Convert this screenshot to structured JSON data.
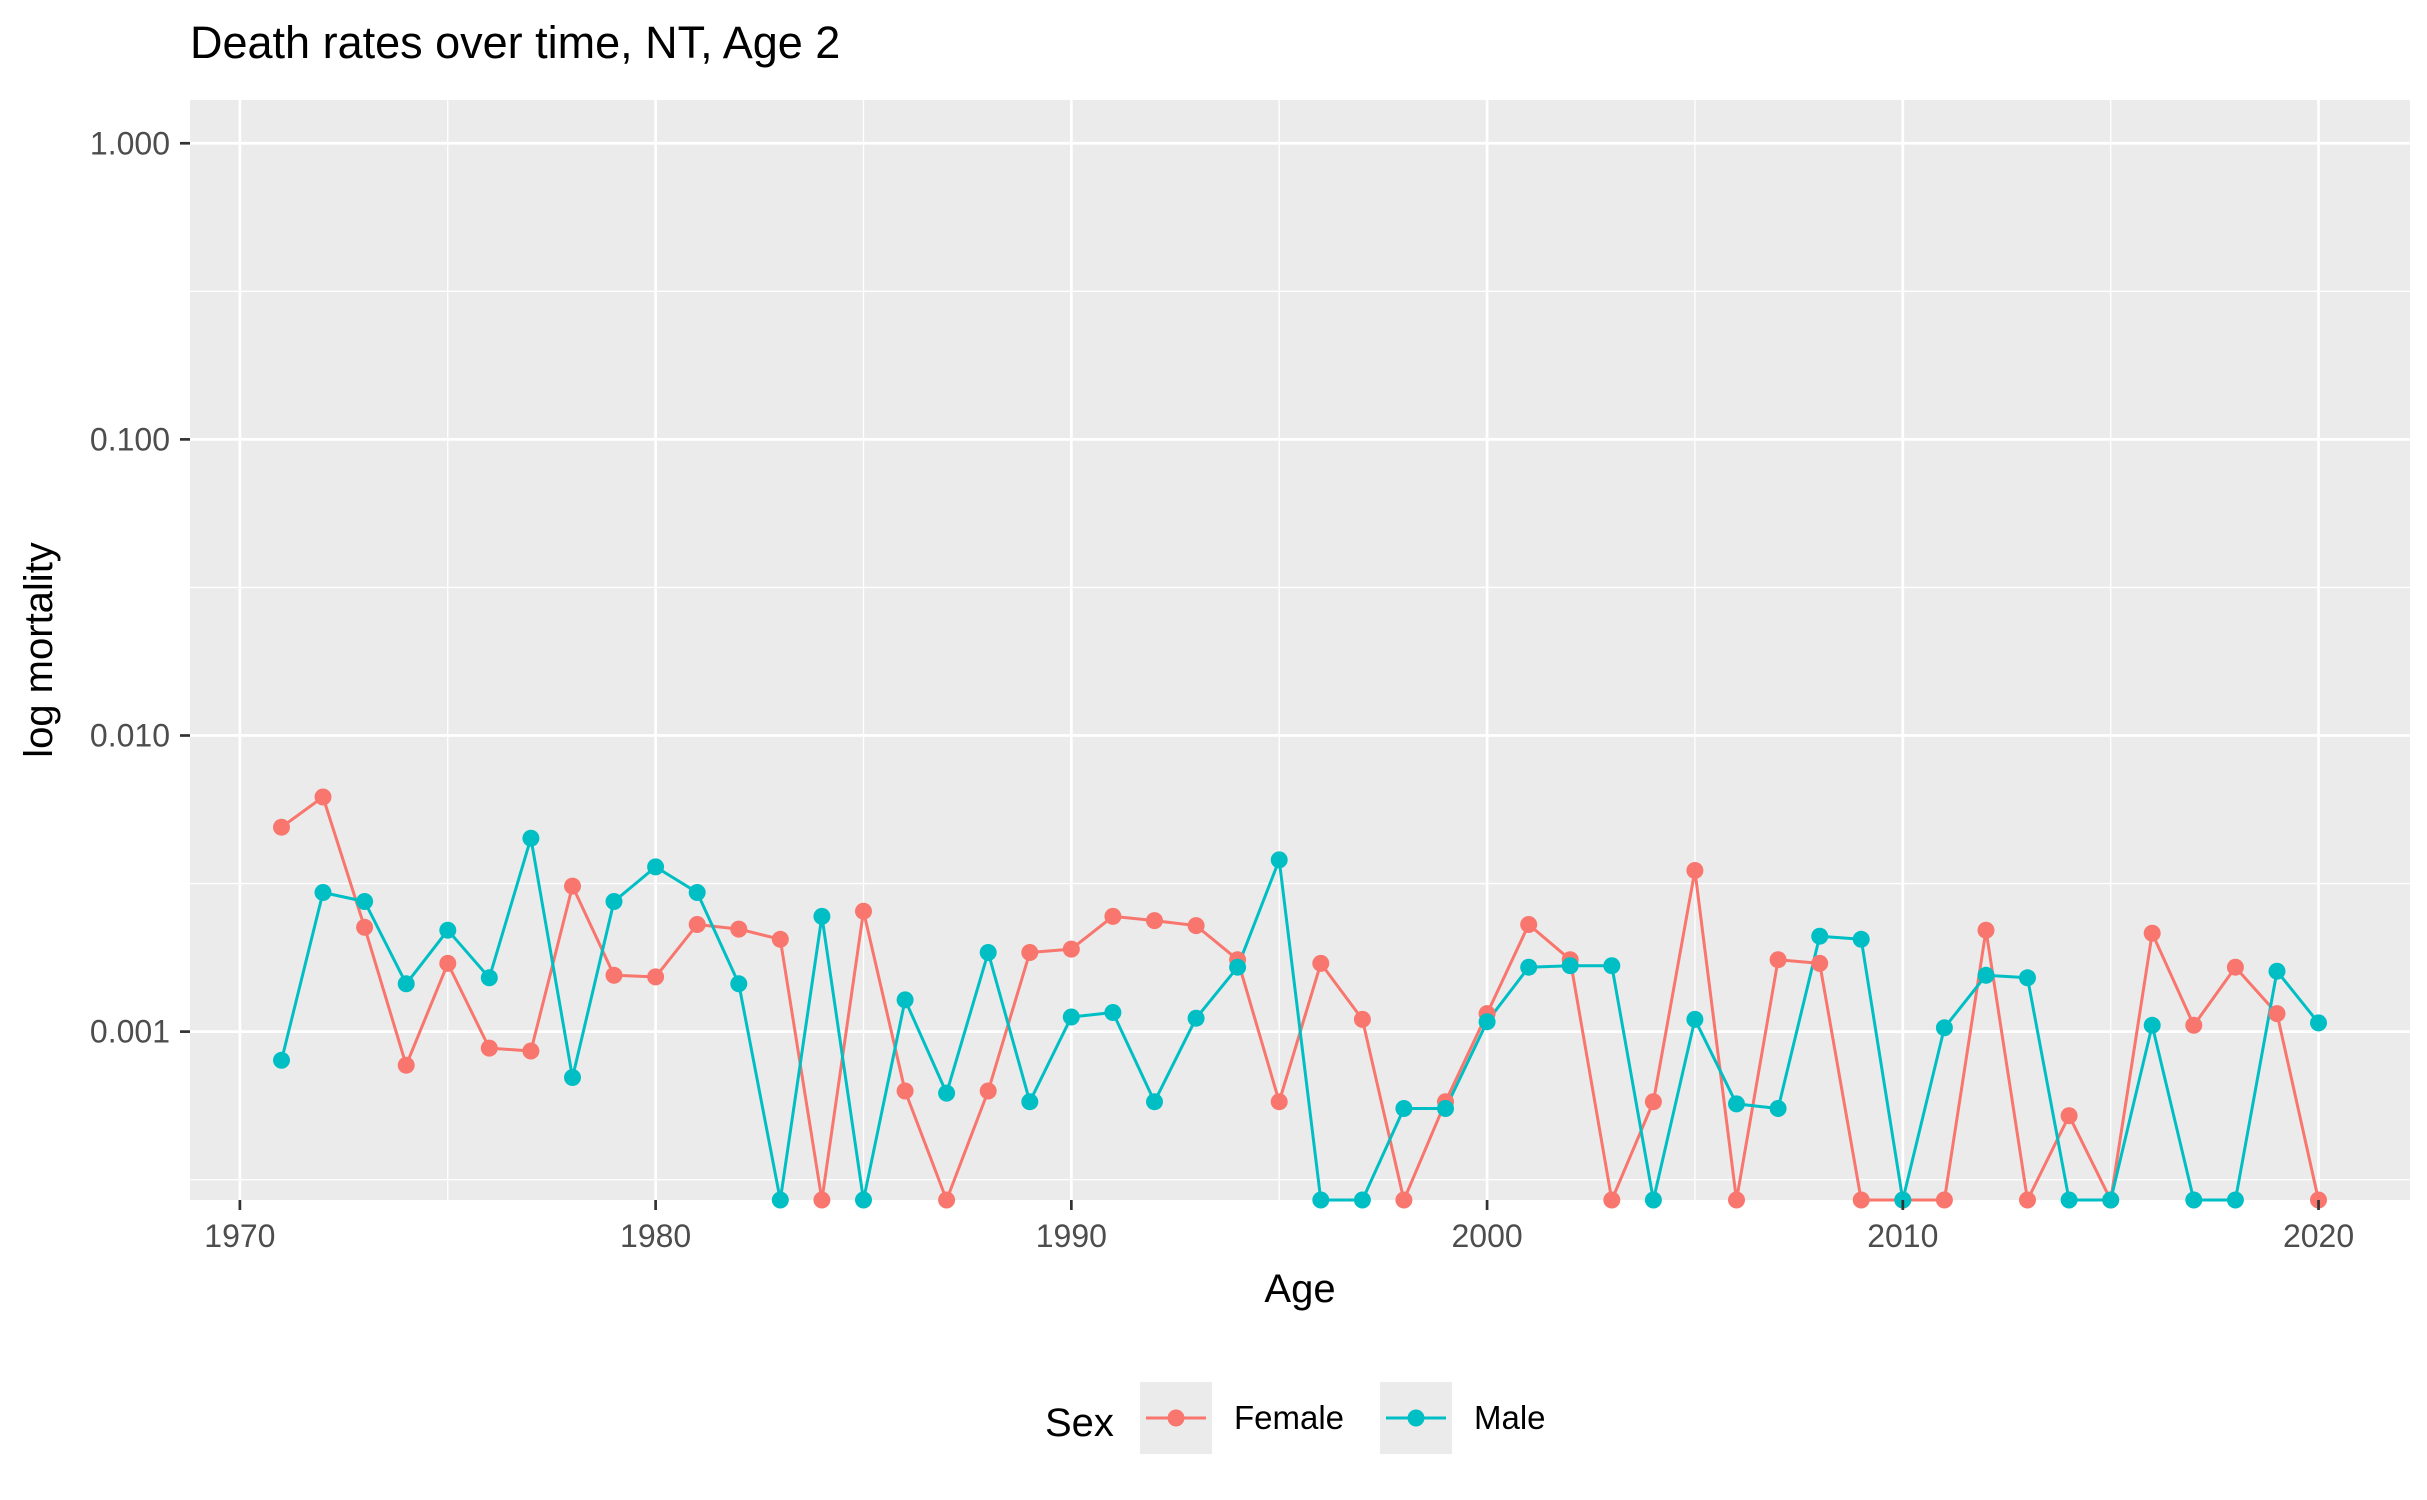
{
  "chart_data": {
    "type": "line",
    "title": "Death rates over time, NT, Age 2",
    "xlabel": "Age",
    "ylabel": "log mortality",
    "y_scale": "log",
    "xlim": [
      1968.8,
      2022.2
    ],
    "ylim": [
      0.00027,
      1.4
    ],
    "x_ticks": [
      1970,
      1980,
      1990,
      2000,
      2010,
      2020
    ],
    "x_tick_labels": [
      "1970",
      "1980",
      "1990",
      "2000",
      "2010",
      "2020"
    ],
    "y_ticks": [
      0.001,
      0.01,
      0.1,
      1
    ],
    "y_tick_labels": [
      "0.001",
      "0.010",
      "0.100",
      "1.000"
    ],
    "grid": true,
    "legend": {
      "title": "Sex",
      "position": "bottom"
    },
    "x": [
      1971,
      1972,
      1973,
      1974,
      1975,
      1976,
      1977,
      1978,
      1979,
      1980,
      1981,
      1982,
      1983,
      1984,
      1985,
      1986,
      1987,
      1988,
      1989,
      1990,
      1991,
      1992,
      1993,
      1994,
      1995,
      1996,
      1997,
      1998,
      1999,
      2000,
      2001,
      2002,
      2003,
      2004,
      2005,
      2006,
      2007,
      2008,
      2009,
      2010,
      2011,
      2012,
      2013,
      2014,
      2015,
      2016,
      2017,
      2018,
      2019,
      2020
    ],
    "series": [
      {
        "name": "Female",
        "color": "#F8766D",
        "values": [
          0.0049,
          0.0062,
          0.00225,
          0.00077,
          0.0017,
          0.00088,
          0.00086,
          0.0031,
          0.00155,
          0.00153,
          0.0023,
          0.00222,
          0.00205,
          0.00027,
          0.00255,
          0.00063,
          0.00027,
          0.00063,
          0.00185,
          0.0019,
          0.00245,
          0.00237,
          0.00228,
          0.00175,
          0.00058,
          0.0017,
          0.0011,
          0.00027,
          0.00058,
          0.00115,
          0.0023,
          0.00175,
          0.00027,
          0.00058,
          0.0035,
          0.00027,
          0.00175,
          0.0017,
          0.00027,
          0.00027,
          0.00027,
          0.0022,
          0.00027,
          0.00052,
          0.00027,
          0.00215,
          0.00105,
          0.00165,
          0.00115,
          0.00027
        ]
      },
      {
        "name": "Male",
        "color": "#00BFC4",
        "values": [
          0.0008,
          0.00295,
          0.00275,
          0.00145,
          0.0022,
          0.00152,
          0.0045,
          0.0007,
          0.00275,
          0.0036,
          0.00295,
          0.00145,
          0.00027,
          0.00245,
          0.00027,
          0.00128,
          0.00062,
          0.00185,
          0.00058,
          0.00112,
          0.00116,
          0.00058,
          0.00111,
          0.00165,
          0.0038,
          0.00027,
          0.00027,
          0.00055,
          0.00055,
          0.00108,
          0.00165,
          0.00167,
          0.00167,
          0.00027,
          0.0011,
          0.00057,
          0.00055,
          0.0021,
          0.00205,
          0.00027,
          0.00103,
          0.00155,
          0.00152,
          0.00027,
          0.00027,
          0.00105,
          0.00027,
          0.00027,
          0.0016,
          0.00107
        ]
      }
    ]
  }
}
